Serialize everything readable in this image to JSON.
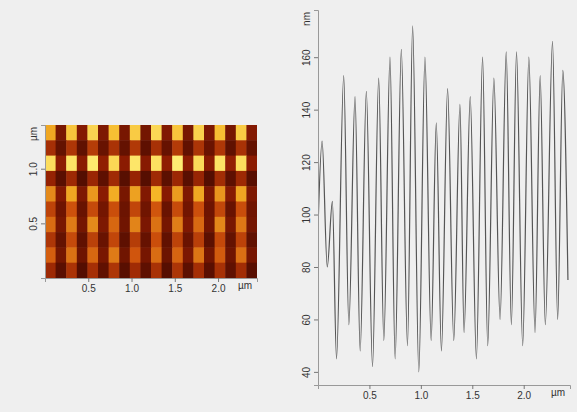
{
  "chart_data": [
    {
      "type": "heatmap",
      "x_label": "µm",
      "y_label": "µm",
      "xlim": [
        0,
        2.45
      ],
      "ylim": [
        0,
        1.4
      ],
      "xticks": [
        0.5,
        {
          "value": 1,
          "label": "1.0"
        },
        1.5,
        {
          "value": 2,
          "label": "2.0"
        }
      ],
      "yticks": [
        0.5,
        {
          "value": 1,
          "label": "1.0"
        }
      ],
      "zlim": [
        40,
        175
      ],
      "z": [
        [
          150,
          70,
          160,
          75,
          165,
          72,
          158,
          70,
          162,
          68,
          166,
          74,
          160,
          70,
          164,
          72,
          158,
          69,
          162,
          75
        ],
        [
          95,
          60,
          100,
          58,
          105,
          62,
          98,
          60,
          102,
          57,
          96,
          61,
          104,
          59,
          99,
          63,
          101,
          58,
          97,
          60
        ],
        [
          168,
          80,
          170,
          78,
          172,
          82,
          166,
          79,
          171,
          77,
          169,
          81,
          173,
          80,
          167,
          78,
          170,
          83,
          168,
          79
        ],
        [
          85,
          55,
          90,
          52,
          88,
          57,
          92,
          54,
          86,
          53,
          91,
          56,
          89,
          55,
          87,
          52,
          93,
          57,
          90,
          54
        ],
        [
          140,
          75,
          150,
          72,
          145,
          78,
          152,
          70,
          148,
          74,
          155,
          77,
          146,
          73,
          150,
          71,
          144,
          76,
          149,
          72
        ],
        [
          110,
          65,
          120,
          62,
          115,
          68,
          118,
          64,
          112,
          66,
          122,
          63,
          116,
          67,
          119,
          65,
          113,
          62,
          117,
          66
        ],
        [
          130,
          70,
          135,
          68,
          140,
          72,
          128,
          66,
          138,
          71,
          132,
          69,
          136,
          73,
          129,
          67,
          139,
          70,
          134,
          68
        ],
        [
          100,
          60,
          115,
          58,
          108,
          62,
          112,
          57,
          105,
          61,
          118,
          59,
          110,
          63,
          107,
          56,
          114,
          60,
          109,
          58
        ],
        [
          125,
          68,
          132,
          65,
          128,
          70,
          135,
          66,
          122,
          69,
          130,
          64,
          127,
          71,
          133,
          67,
          124,
          65,
          131,
          69
        ],
        [
          90,
          55,
          98,
          52,
          95,
          58,
          100,
          54,
          92,
          57,
          97,
          53,
          99,
          56,
          94,
          55,
          96,
          58,
          93,
          54
        ]
      ]
    },
    {
      "type": "line",
      "x_label": "µm",
      "y_label": "nm",
      "color": "#555555",
      "xlim": [
        0,
        2.45
      ],
      "ylim": [
        35,
        178
      ],
      "xticks": [
        0.5,
        {
          "value": 1,
          "label": "1.0"
        },
        1.5,
        {
          "value": 2,
          "label": "2.0"
        }
      ],
      "yticks": [
        40,
        60,
        80,
        100,
        120,
        140,
        160
      ],
      "x": [
        0.0,
        0.04,
        0.09,
        0.14,
        0.18,
        0.25,
        0.3,
        0.36,
        0.41,
        0.47,
        0.53,
        0.59,
        0.64,
        0.7,
        0.75,
        0.81,
        0.87,
        0.92,
        0.98,
        1.04,
        1.1,
        1.15,
        1.2,
        1.26,
        1.32,
        1.38,
        1.42,
        1.48,
        1.54,
        1.6,
        1.65,
        1.71,
        1.77,
        1.83,
        1.88,
        1.93,
        1.99,
        2.05,
        2.11,
        2.16,
        2.21,
        2.28,
        2.33,
        2.38,
        2.43
      ],
      "values": [
        95,
        128,
        80,
        105,
        45,
        153,
        58,
        145,
        48,
        147,
        42,
        152,
        52,
        160,
        45,
        163,
        50,
        172,
        40,
        160,
        52,
        135,
        48,
        148,
        52,
        142,
        55,
        145,
        45,
        160,
        50,
        152,
        60,
        162,
        58,
        162,
        50,
        160,
        55,
        153,
        58,
        166,
        60,
        155,
        75
      ]
    }
  ]
}
